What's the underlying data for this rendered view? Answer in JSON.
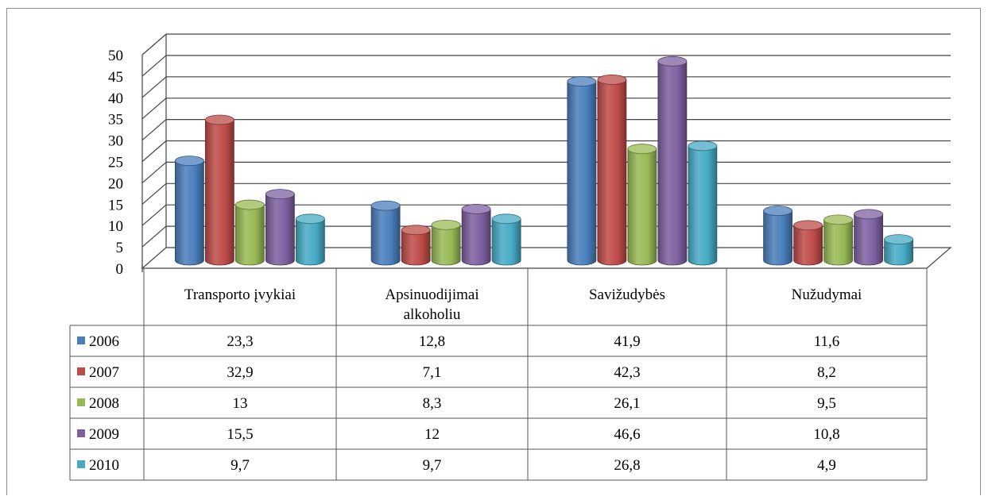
{
  "chart_data": {
    "type": "bar",
    "categories": [
      "Transporto įvykiai",
      "Apsinuodijimai alkoholiu",
      "Savižudybės",
      "Nužudymai"
    ],
    "series": [
      {
        "name": "2006",
        "color": "#4a7ebb",
        "values": [
          23.3,
          12.8,
          41.9,
          11.6
        ],
        "labels": [
          "23,3",
          "12,8",
          "41,9",
          "11,6"
        ]
      },
      {
        "name": "2007",
        "color": "#be4b48",
        "values": [
          32.9,
          7.1,
          42.3,
          8.2
        ],
        "labels": [
          "32,9",
          "7,1",
          "42,3",
          "8,2"
        ]
      },
      {
        "name": "2008",
        "color": "#98b954",
        "values": [
          13,
          8.3,
          26.1,
          9.5
        ],
        "labels": [
          "13",
          "8,3",
          "26,1",
          "9,5"
        ]
      },
      {
        "name": "2009",
        "color": "#7d60a0",
        "values": [
          15.5,
          12,
          46.6,
          10.8
        ],
        "labels": [
          "15,5",
          "12",
          "46,6",
          "10,8"
        ]
      },
      {
        "name": "2010",
        "color": "#46aac5",
        "values": [
          9.7,
          9.7,
          26.8,
          4.9
        ],
        "labels": [
          "9,7",
          "9,7",
          "26,8",
          "4,9"
        ]
      }
    ],
    "ylim": [
      0,
      50
    ],
    "yticks": [
      "0",
      "5",
      "10",
      "15",
      "20",
      "25",
      "30",
      "35",
      "40",
      "45",
      "50"
    ],
    "grid": true,
    "legend": "data-table",
    "style": "3d-cylinder"
  }
}
